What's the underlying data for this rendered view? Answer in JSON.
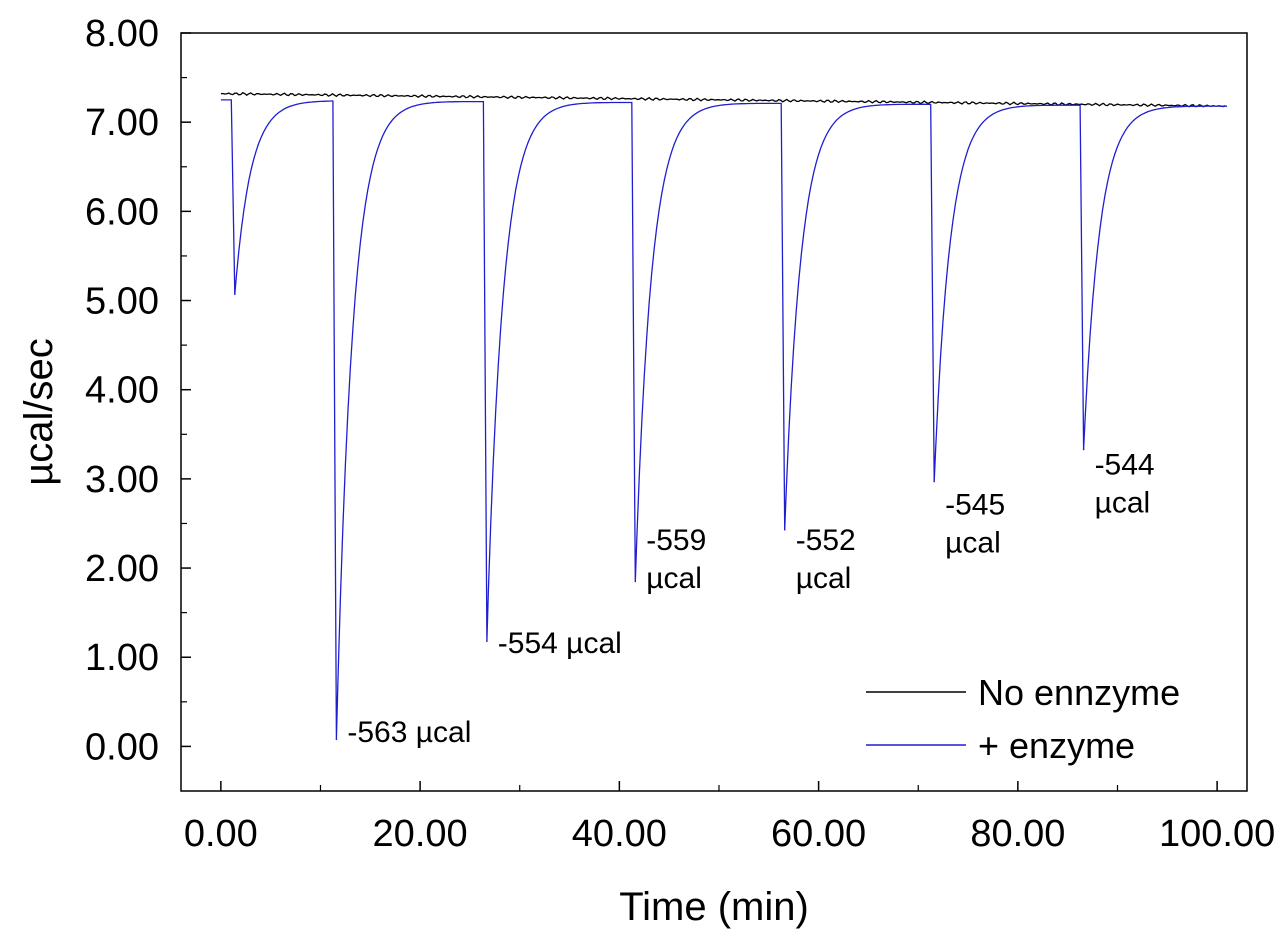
{
  "chart_data": {
    "type": "line",
    "xlabel": "Time (min)",
    "ylabel": "µcal/sec",
    "xlim": [
      -4,
      103
    ],
    "ylim": [
      -0.5,
      8.0
    ],
    "xticks": [
      0,
      20,
      40,
      60,
      80,
      100
    ],
    "xtick_labels": [
      "0.00",
      "20.00",
      "40.00",
      "60.00",
      "80.00",
      "100.00"
    ],
    "yticks": [
      0,
      1,
      2,
      3,
      4,
      5,
      6,
      7,
      8
    ],
    "ytick_labels": [
      "0.00",
      "1.00",
      "2.00",
      "3.00",
      "4.00",
      "5.00",
      "6.00",
      "7.00",
      "8.00"
    ],
    "grid": false,
    "legend_position": "bottom-right",
    "series": [
      {
        "name": "No ennzyme",
        "color": "#000000",
        "baseline_start": [
          0,
          7.32
        ],
        "baseline_end": [
          101,
          7.18
        ]
      },
      {
        "name": "+ enzyme",
        "color": "#1f1fd0",
        "baseline": [
          [
            0,
            7.25
          ],
          [
            101,
            7.18
          ]
        ],
        "peaks": [
          {
            "x": 1.4,
            "min": 5.07
          },
          {
            "x": 11.6,
            "min": 0.08
          },
          {
            "x": 26.7,
            "min": 1.18
          },
          {
            "x": 41.6,
            "min": 1.85
          },
          {
            "x": 56.6,
            "min": 2.43
          },
          {
            "x": 71.6,
            "min": 2.97
          },
          {
            "x": 86.6,
            "min": 3.33
          }
        ]
      }
    ],
    "annotations": [
      {
        "lines": [
          "-563 µcal"
        ],
        "x": 12.7,
        "y": 0.05
      },
      {
        "lines": [
          "-554 µcal"
        ],
        "x": 27.8,
        "y": 1.05
      },
      {
        "lines": [
          "-559",
          "µcal"
        ],
        "x": 42.7,
        "y": 2.2
      },
      {
        "lines": [
          "-552",
          "µcal"
        ],
        "x": 57.7,
        "y": 2.2
      },
      {
        "lines": [
          "-545",
          "µcal"
        ],
        "x": 72.7,
        "y": 2.6
      },
      {
        "lines": [
          "-544",
          "µcal"
        ],
        "x": 87.7,
        "y": 3.05
      }
    ]
  }
}
